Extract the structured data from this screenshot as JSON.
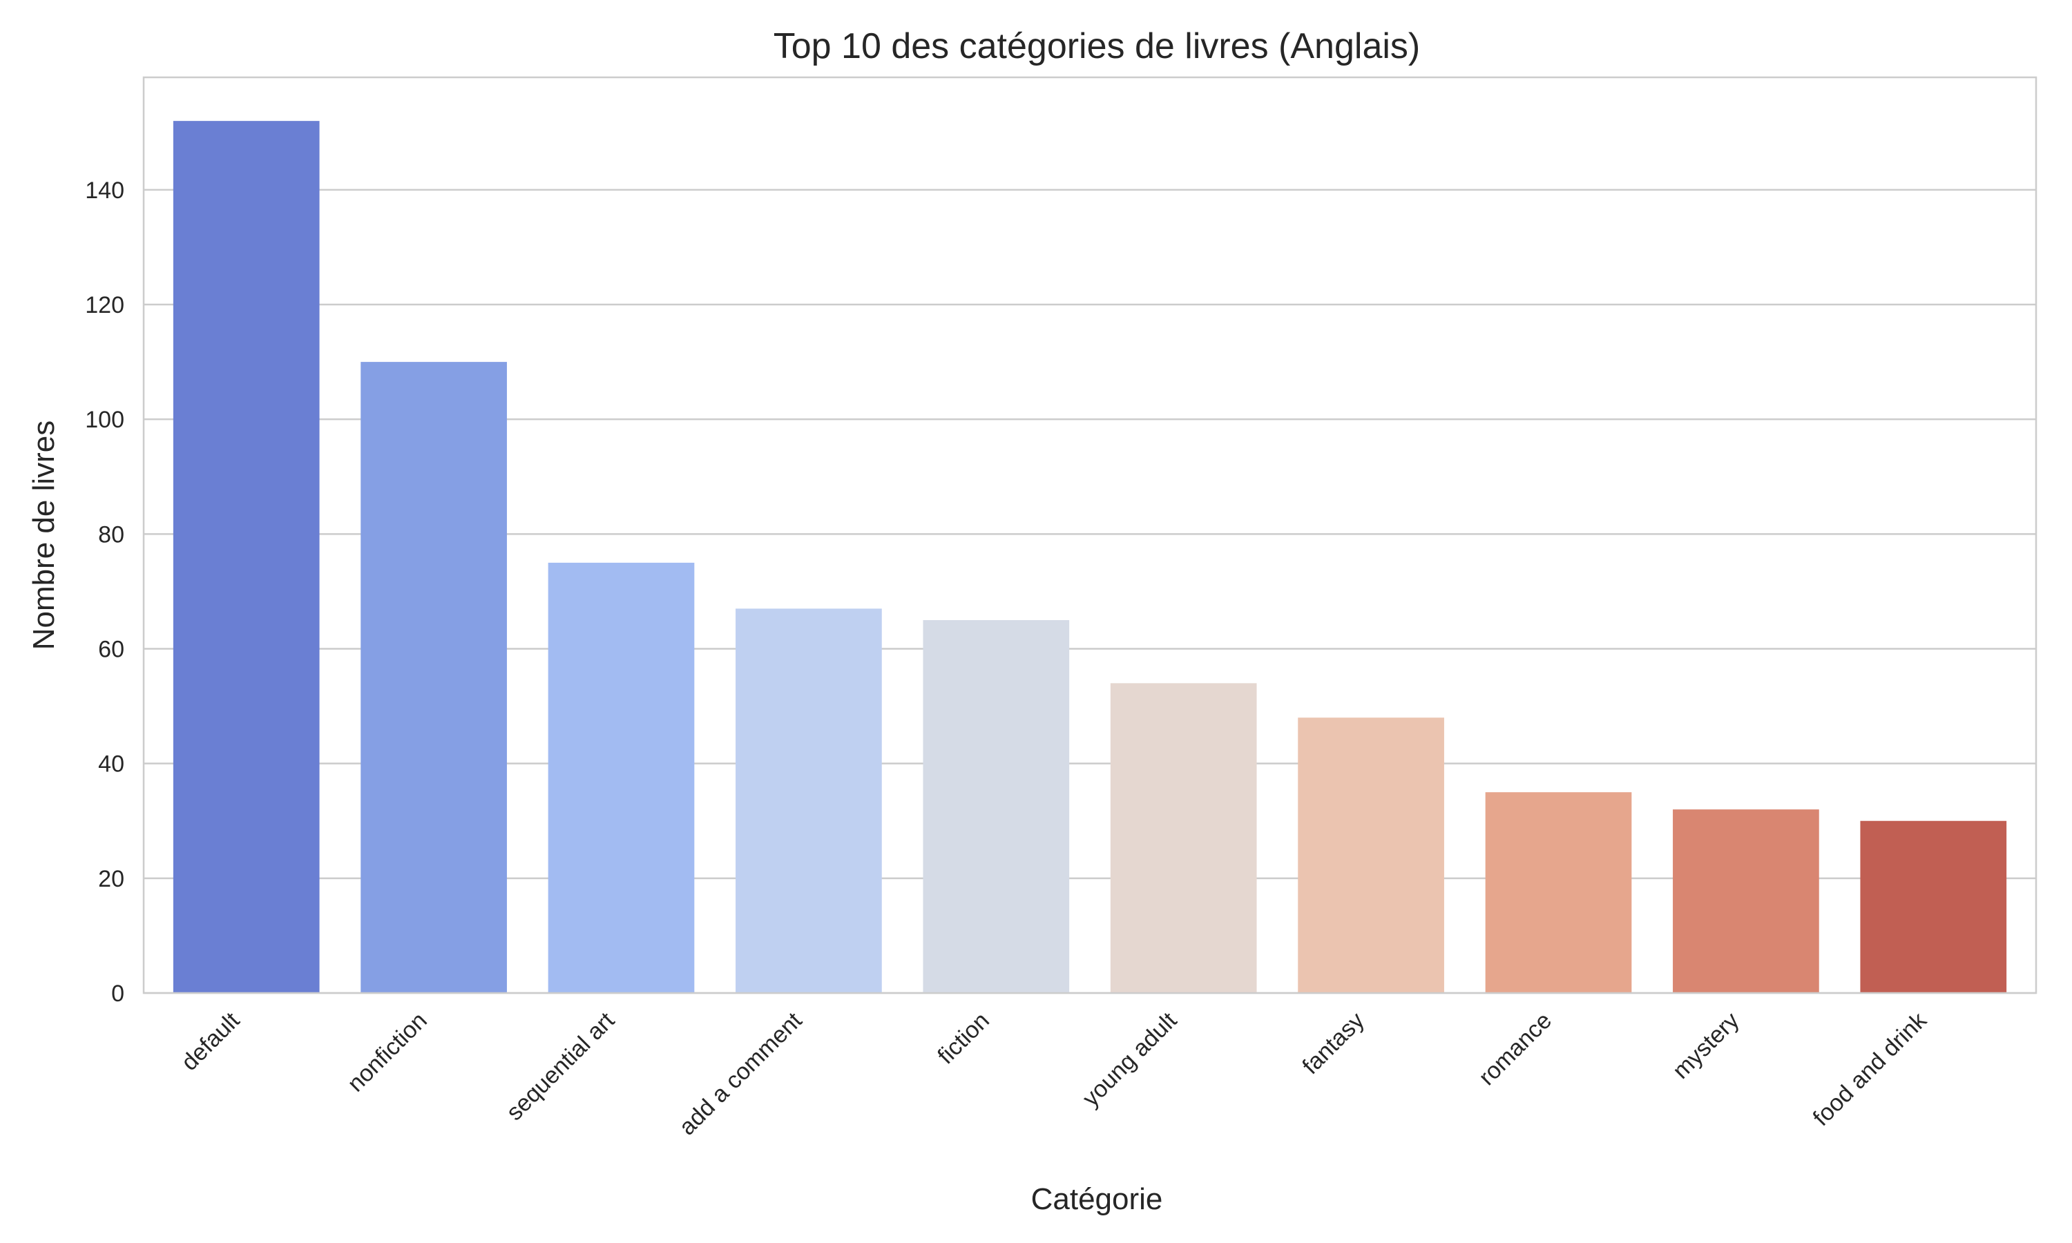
{
  "chart_data": {
    "type": "bar",
    "title": "Top 10 des catégories de livres (Anglais)",
    "xlabel": "Catégorie",
    "ylabel": "Nombre de livres",
    "categories": [
      "default",
      "nonfiction",
      "sequential art",
      "add a comment",
      "fiction",
      "young adult",
      "fantasy",
      "romance",
      "mystery",
      "food and drink"
    ],
    "values": [
      152,
      110,
      75,
      67,
      65,
      54,
      48,
      35,
      32,
      30
    ],
    "colors": [
      "#6a7fd3",
      "#859fe4",
      "#a2bbf2",
      "#bfd0f1",
      "#d5dbe6",
      "#e5d7d0",
      "#ebc4b0",
      "#e6a68d",
      "#d98671",
      "#c15f53"
    ],
    "yticks": [
      0,
      20,
      40,
      60,
      80,
      100,
      120,
      140
    ],
    "ylim": [
      0,
      159.6
    ],
    "grid": "horizontal",
    "legend": "none"
  }
}
